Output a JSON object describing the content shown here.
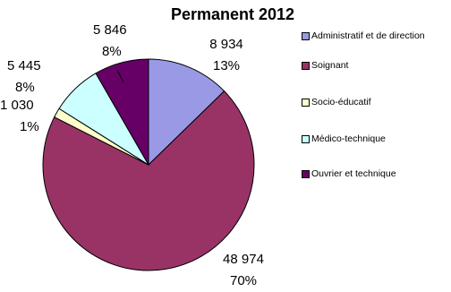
{
  "chart_data": {
    "type": "pie",
    "title": "Permanent 2012",
    "categories": [
      "Administratif et de direction",
      "Soignant",
      "Socio-éducatif",
      "Médico-technique",
      "Ouvrier et technique"
    ],
    "values": [
      8934,
      48974,
      1030,
      5445,
      5846
    ],
    "value_labels": [
      "8 934",
      "48 974",
      "1 030",
      "5 445",
      "5 846"
    ],
    "percent_labels": [
      "13%",
      "70%",
      "1%",
      "8%",
      "8%"
    ],
    "colors": [
      "#9999e6",
      "#993366",
      "#ffffcc",
      "#ccffff",
      "#660066"
    ],
    "legend_position": "right",
    "start_angle": "12 o'clock, clockwise"
  }
}
